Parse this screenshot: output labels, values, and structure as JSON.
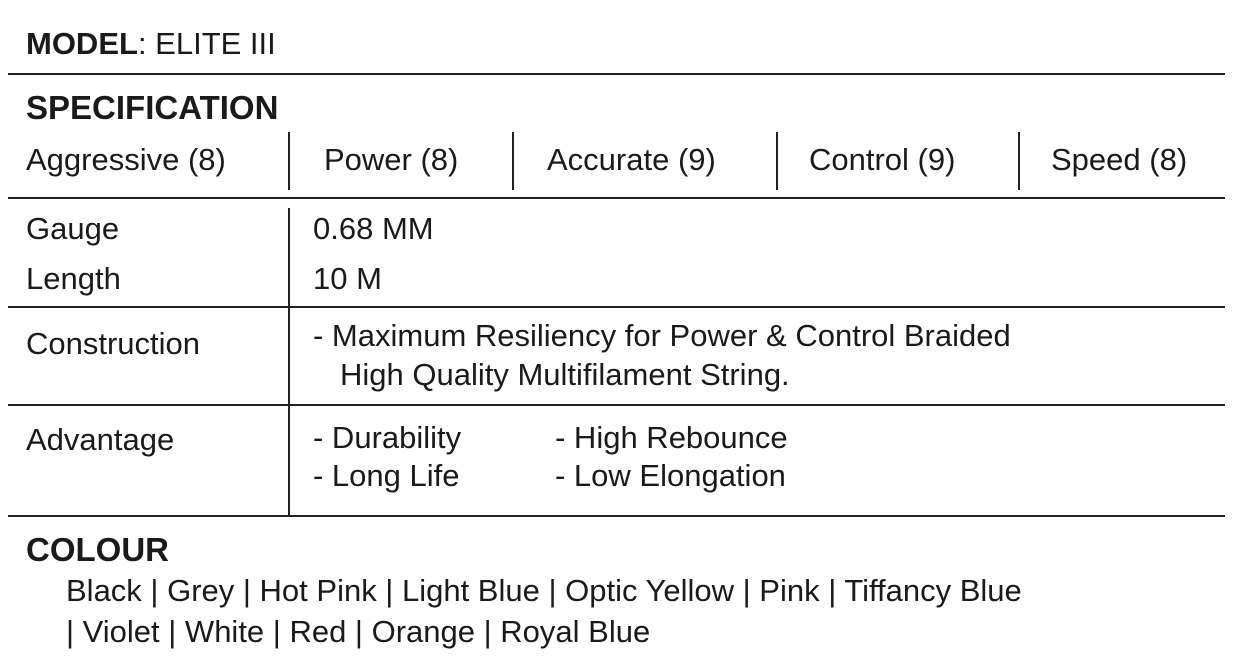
{
  "model": {
    "label": "MODEL",
    "value": ": ELITE III"
  },
  "specification": {
    "heading": "SPECIFICATION",
    "ratings": [
      "Aggressive (8)",
      "Power (8)",
      "Accurate (9)",
      "Control (9)",
      "Speed (8)"
    ]
  },
  "rows": {
    "gauge": {
      "label": "Gauge",
      "value": "0.68 MM"
    },
    "length": {
      "label": "Length",
      "value": "10 M"
    },
    "construction": {
      "label": "Construction",
      "lines": [
        "- Maximum Resiliency for Power & Control Braided",
        "High Quality Multifilament String."
      ]
    },
    "advantage": {
      "label": "Advantage",
      "items": [
        "- Durability",
        "- High Rebounce",
        "- Long Life",
        "- Low Elongation"
      ]
    }
  },
  "colour": {
    "heading": "COLOUR",
    "lines": [
      "Black | Grey | Hot Pink | Light Blue | Optic Yellow | Pink | Tiffancy Blue",
      "| Violet | White | Red | Orange | Royal Blue"
    ]
  }
}
